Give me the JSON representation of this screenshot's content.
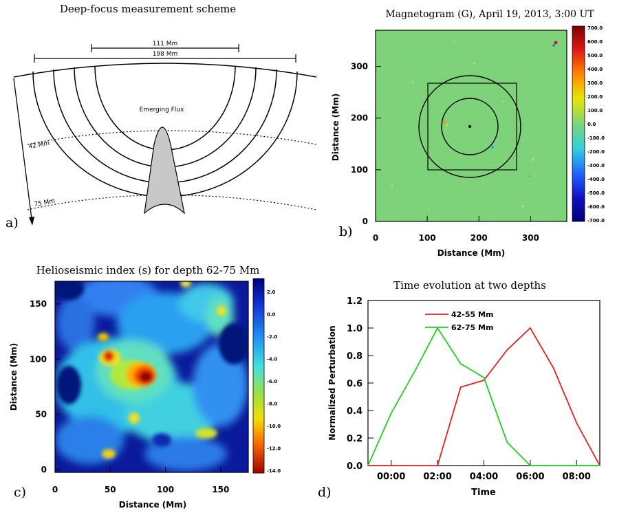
{
  "panel_a": {
    "title": "Deep-focus measurement scheme",
    "label": "a)",
    "span_inner": "111 Mm",
    "span_outer": "198 Mm",
    "depth_1": "42 Mm",
    "depth_2": "75 Mm",
    "flux_label": "Emerging Flux"
  },
  "panel_b": {
    "title": "Magnetogram (G), April 19, 2013, 3:00 UT",
    "label": "b)",
    "xlabel": "Distance (Mm)",
    "ylabel": "Distance (Mm)",
    "xticks": [
      "0",
      "100",
      "200",
      "300"
    ],
    "yticks": [
      "0",
      "100",
      "200",
      "300"
    ],
    "colorbar_ticks": [
      "700.0",
      "600.0",
      "500.0",
      "400.0",
      "300.0",
      "200.0",
      "100.0",
      "0.0",
      "-100.0",
      "-200.0",
      "-300.0",
      "-400.0",
      "-500.0",
      "-600.0",
      "-700.0"
    ]
  },
  "panel_c": {
    "title": "Helioseismic index (s) for depth 62-75 Mm",
    "label": "c)",
    "xlabel": "Distance (Mm)",
    "ylabel": "Distance (Mm)",
    "xticks": [
      "0",
      "50",
      "100",
      "150"
    ],
    "yticks": [
      "0",
      "50",
      "100",
      "150"
    ],
    "colorbar_ticks": [
      "2.0",
      "0.0",
      "-2.0",
      "-4.0",
      "-6.0",
      "-8.0",
      "-10.0",
      "-12.0",
      "-14.0"
    ]
  },
  "panel_d": {
    "label": "d)"
  },
  "colors": {
    "red": "#e02020",
    "green": "#22cc22",
    "field_green": "#7ed37a"
  },
  "chart_data": {
    "type": "line",
    "title": "Time evolution at two depths",
    "xlabel": "Time",
    "ylabel": "Normalized Perturbation",
    "x": [
      "23:00",
      "00:00",
      "01:00",
      "02:00",
      "03:00",
      "04:00",
      "05:00",
      "06:00",
      "07:00",
      "08:00",
      "09:00"
    ],
    "xticks": [
      "00:00",
      "02:00",
      "04:00",
      "06:00",
      "08:00"
    ],
    "yticks": [
      "0.0",
      "0.2",
      "0.4",
      "0.6",
      "0.8",
      "1.0",
      "1.2"
    ],
    "ylim": [
      0,
      1.2
    ],
    "legend_position": "top-center",
    "grid": false,
    "series": [
      {
        "name": "42-55 Mm",
        "color": "#e02020",
        "values": [
          0,
          0,
          0,
          0,
          0.57,
          0.62,
          0.84,
          1.0,
          0.71,
          0.31,
          0
        ]
      },
      {
        "name": "62-75 Mm",
        "color": "#22cc22",
        "values": [
          0,
          0.38,
          0.68,
          1.0,
          0.74,
          0.64,
          0.17,
          0,
          0,
          0,
          0
        ]
      }
    ]
  }
}
